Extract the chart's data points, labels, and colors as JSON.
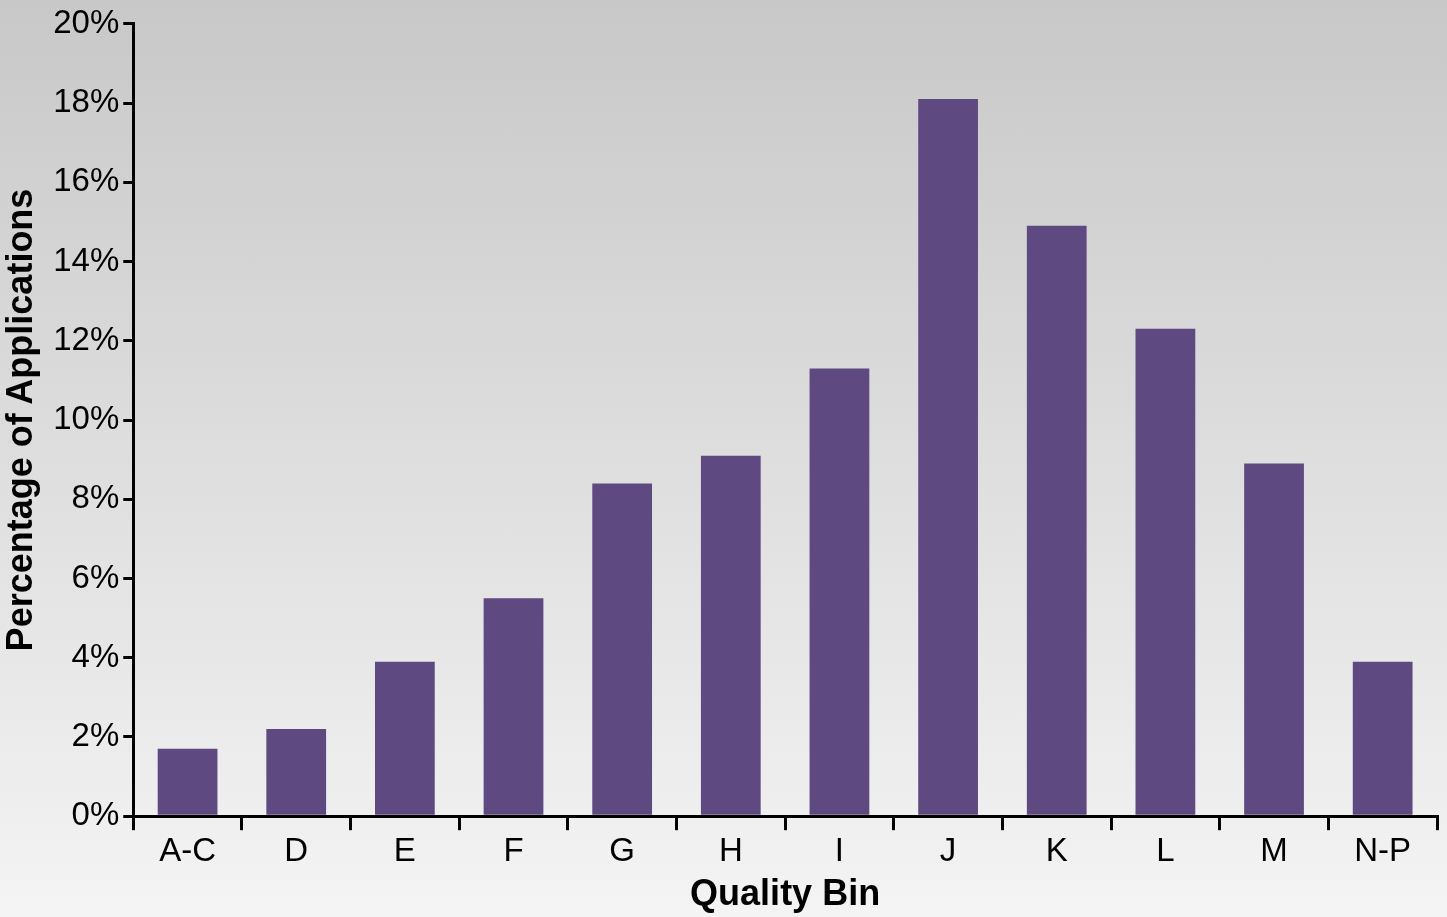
{
  "chart_data": {
    "type": "bar",
    "xlabel": "Quality Bin",
    "ylabel": "Percentage of Applications",
    "categories": [
      "A-C",
      "D",
      "E",
      "F",
      "G",
      "H",
      "I",
      "J",
      "K",
      "L",
      "M",
      "N-P"
    ],
    "values": [
      1.7,
      2.2,
      3.9,
      5.5,
      8.4,
      9.1,
      11.3,
      18.1,
      14.9,
      12.3,
      8.9,
      3.9
    ],
    "color": "#5e4a80",
    "ylim": [
      0,
      20
    ],
    "yticks": [
      {
        "value": 0,
        "label": "0%"
      },
      {
        "value": 2,
        "label": "2%"
      },
      {
        "value": 4,
        "label": "4%"
      },
      {
        "value": 6,
        "label": "6%"
      },
      {
        "value": 8,
        "label": "8%"
      },
      {
        "value": 10,
        "label": "10%"
      },
      {
        "value": 12,
        "label": "12%"
      },
      {
        "value": 14,
        "label": "14%"
      },
      {
        "value": 16,
        "label": "16%"
      },
      {
        "value": 18,
        "label": "18%"
      },
      {
        "value": 20,
        "label": "20%"
      }
    ],
    "grid": false,
    "legend": false
  }
}
